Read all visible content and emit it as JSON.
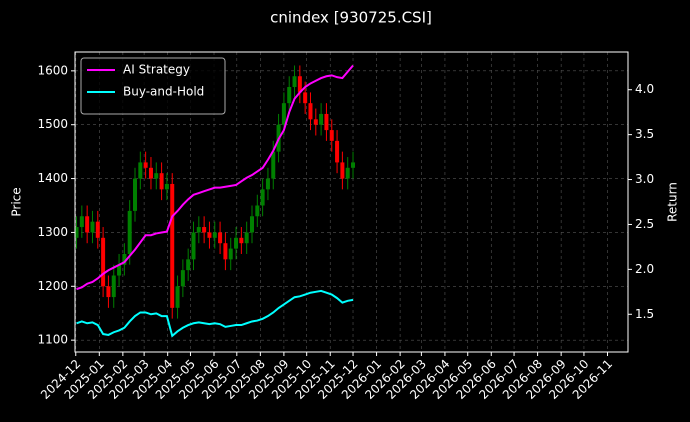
{
  "chart_data": {
    "type": "candlestick",
    "title": "cnindex [930725.CSI]",
    "ylabel": "Price",
    "y2label": "Return",
    "x": [
      "2024-12-02",
      "2024-12-09",
      "2024-12-16",
      "2024-12-23",
      "2024-12-30",
      "2025-01-06",
      "2025-01-13",
      "2025-01-20",
      "2025-01-27",
      "2025-02-03",
      "2025-02-10",
      "2025-02-17",
      "2025-02-24",
      "2025-03-03",
      "2025-03-10",
      "2025-03-17",
      "2025-03-24",
      "2025-03-31",
      "2025-04-07",
      "2025-04-14",
      "2025-04-21",
      "2025-04-28",
      "2025-05-05",
      "2025-05-12",
      "2025-05-19",
      "2025-05-26",
      "2025-06-02",
      "2025-06-09",
      "2025-06-16",
      "2025-06-23",
      "2025-06-30",
      "2025-07-07",
      "2025-07-14",
      "2025-07-21",
      "2025-07-28",
      "2025-08-04",
      "2025-08-11",
      "2025-08-18",
      "2025-08-25",
      "2025-09-01",
      "2025-09-08",
      "2025-09-15",
      "2025-09-22",
      "2025-09-29",
      "2025-10-06",
      "2025-10-13",
      "2025-10-20",
      "2025-10-27",
      "2025-11-03",
      "2025-11-10",
      "2025-11-17",
      "2025-11-24",
      "2025-12-01"
    ],
    "open": [
      1290,
      1310,
      1330,
      1300,
      1320,
      1290,
      1200,
      1180,
      1220,
      1240,
      1260,
      1340,
      1400,
      1430,
      1420,
      1400,
      1410,
      1380,
      1390,
      1160,
      1200,
      1230,
      1250,
      1300,
      1310,
      1300,
      1290,
      1300,
      1280,
      1250,
      1270,
      1290,
      1280,
      1300,
      1330,
      1350,
      1380,
      1400,
      1450,
      1500,
      1540,
      1570,
      1590,
      1560,
      1540,
      1510,
      1500,
      1520,
      1490,
      1470,
      1430,
      1400,
      1420
    ],
    "high": [
      1330,
      1350,
      1350,
      1340,
      1340,
      1310,
      1220,
      1240,
      1260,
      1280,
      1360,
      1420,
      1450,
      1450,
      1440,
      1430,
      1430,
      1410,
      1410,
      1220,
      1250,
      1270,
      1320,
      1330,
      1330,
      1320,
      1320,
      1320,
      1300,
      1290,
      1310,
      1310,
      1320,
      1350,
      1370,
      1400,
      1420,
      1470,
      1520,
      1560,
      1590,
      1610,
      1610,
      1580,
      1560,
      1530,
      1540,
      1540,
      1510,
      1490,
      1450,
      1440,
      1450
    ],
    "low": [
      1270,
      1290,
      1280,
      1280,
      1270,
      1180,
      1160,
      1160,
      1200,
      1220,
      1240,
      1320,
      1380,
      1400,
      1380,
      1380,
      1360,
      1360,
      1140,
      1140,
      1180,
      1210,
      1230,
      1280,
      1280,
      1270,
      1270,
      1260,
      1230,
      1230,
      1250,
      1260,
      1260,
      1280,
      1310,
      1330,
      1360,
      1380,
      1430,
      1480,
      1520,
      1550,
      1540,
      1520,
      1490,
      1480,
      1480,
      1470,
      1450,
      1410,
      1380,
      1380,
      1400
    ],
    "close": [
      1310,
      1330,
      1300,
      1320,
      1290,
      1200,
      1180,
      1220,
      1240,
      1260,
      1340,
      1400,
      1430,
      1420,
      1400,
      1410,
      1380,
      1390,
      1160,
      1200,
      1230,
      1250,
      1300,
      1310,
      1300,
      1290,
      1300,
      1280,
      1250,
      1270,
      1290,
      1280,
      1300,
      1330,
      1350,
      1380,
      1400,
      1450,
      1500,
      1540,
      1570,
      1590,
      1560,
      1540,
      1510,
      1500,
      1520,
      1490,
      1470,
      1430,
      1400,
      1420,
      1430
    ],
    "up_color": "#008000",
    "down_color": "#ff0000",
    "series": [
      {
        "name": "AI Strategy",
        "color": "#ff00ff",
        "axis": "y2",
        "values": [
          1.78,
          1.8,
          1.84,
          1.86,
          1.9,
          1.95,
          1.99,
          2.02,
          2.05,
          2.08,
          2.15,
          2.22,
          2.3,
          2.38,
          2.38,
          2.4,
          2.41,
          2.42,
          2.59,
          2.65,
          2.72,
          2.78,
          2.83,
          2.85,
          2.87,
          2.89,
          2.91,
          2.91,
          2.92,
          2.93,
          2.94,
          2.98,
          3.02,
          3.05,
          3.09,
          3.13,
          3.22,
          3.32,
          3.45,
          3.55,
          3.75,
          3.9,
          3.97,
          4.03,
          4.07,
          4.1,
          4.13,
          4.15,
          4.16,
          4.14,
          4.13,
          4.2,
          4.27
        ]
      },
      {
        "name": "Buy-and-Hold",
        "color": "#00ffff",
        "axis": "y2",
        "values": [
          1.4,
          1.42,
          1.4,
          1.41,
          1.38,
          1.28,
          1.27,
          1.3,
          1.32,
          1.35,
          1.42,
          1.48,
          1.52,
          1.52,
          1.5,
          1.51,
          1.48,
          1.48,
          1.26,
          1.31,
          1.35,
          1.38,
          1.4,
          1.41,
          1.4,
          1.39,
          1.4,
          1.39,
          1.36,
          1.37,
          1.38,
          1.38,
          1.4,
          1.42,
          1.43,
          1.45,
          1.48,
          1.52,
          1.57,
          1.61,
          1.65,
          1.69,
          1.7,
          1.72,
          1.74,
          1.75,
          1.76,
          1.74,
          1.72,
          1.68,
          1.63,
          1.65,
          1.66
        ]
      }
    ],
    "xlim": [
      "2024-11-30",
      "2026-11-28"
    ],
    "xticks": [
      {
        "value": "2024-12-01",
        "label": "2024-12"
      },
      {
        "value": "2025-01-01",
        "label": "2025-01"
      },
      {
        "value": "2025-02-01",
        "label": "2025-02"
      },
      {
        "value": "2025-03-01",
        "label": "2025-03"
      },
      {
        "value": "2025-04-01",
        "label": "2025-04"
      },
      {
        "value": "2025-05-01",
        "label": "2025-05"
      },
      {
        "value": "2025-06-01",
        "label": "2025-06"
      },
      {
        "value": "2025-07-01",
        "label": "2025-07"
      },
      {
        "value": "2025-08-01",
        "label": "2025-08"
      },
      {
        "value": "2025-09-01",
        "label": "2025-09"
      },
      {
        "value": "2025-10-01",
        "label": "2025-10"
      },
      {
        "value": "2025-11-01",
        "label": "2025-11"
      },
      {
        "value": "2025-12-01",
        "label": "2025-12"
      },
      {
        "value": "2026-01-01",
        "label": "2026-01"
      },
      {
        "value": "2026-02-01",
        "label": "2026-02"
      },
      {
        "value": "2026-03-01",
        "label": "2026-03"
      },
      {
        "value": "2026-04-01",
        "label": "2026-04"
      },
      {
        "value": "2026-05-01",
        "label": "2026-05"
      },
      {
        "value": "2026-06-01",
        "label": "2026-06"
      },
      {
        "value": "2026-07-01",
        "label": "2026-07"
      },
      {
        "value": "2026-08-01",
        "label": "2026-08"
      },
      {
        "value": "2026-09-01",
        "label": "2026-09"
      },
      {
        "value": "2026-10-01",
        "label": "2026-10"
      },
      {
        "value": "2026-11-01",
        "label": "2026-11"
      }
    ],
    "ylim": [
      1078,
      1635
    ],
    "yticks": [
      1100,
      1200,
      1300,
      1400,
      1500,
      1600
    ],
    "y2lim": [
      1.08,
      4.42
    ],
    "y2ticks": [
      1.5,
      {
        "value": 2,
        "label": "2.0"
      },
      2.5,
      {
        "value": 3,
        "label": "3.0"
      },
      3.5,
      {
        "value": 4,
        "label": "4.0"
      }
    ],
    "grid": true,
    "legend": "upper left"
  }
}
